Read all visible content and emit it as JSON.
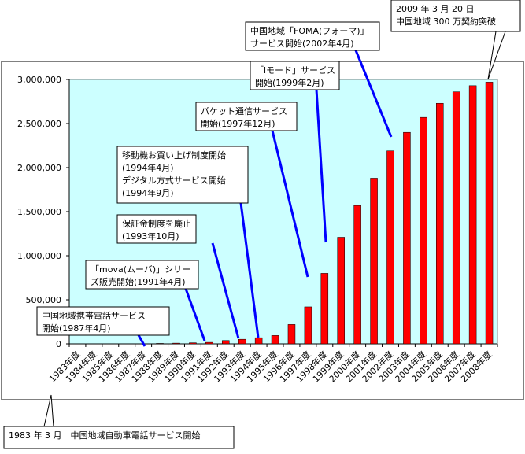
{
  "chart_data": {
    "type": "bar",
    "title": "",
    "xlabel": "",
    "ylabel": "",
    "ylim": [
      0,
      3000000
    ],
    "yticks": [
      0,
      500000,
      1000000,
      1500000,
      2000000,
      2500000,
      3000000
    ],
    "ytick_labels": [
      "0",
      "500,000",
      "1,000,000",
      "1,500,000",
      "2,000,000",
      "2,500,000",
      "3,000,000"
    ],
    "grid": false,
    "legend": "none",
    "plot_background": "#ccffff",
    "bar_color": "#ff0000",
    "categories": [
      "1983年度",
      "1984年度",
      "1985年度",
      "1986年度",
      "1987年度",
      "1988年度",
      "1989年度",
      "1990年度",
      "1991年度",
      "1992年度",
      "1993年度",
      "1994年度",
      "1995年度",
      "1996年度",
      "1997年度",
      "1998年度",
      "1999年度",
      "2000年度",
      "2001年度",
      "2002年度",
      "2003年度",
      "2004年度",
      "2005年度",
      "2006年度",
      "2007年度",
      "2008年度"
    ],
    "values": [
      0,
      0,
      0,
      0,
      2000,
      5000,
      8000,
      12000,
      17000,
      38000,
      52000,
      70000,
      95000,
      220000,
      420000,
      800000,
      1210000,
      1570000,
      1880000,
      2190000,
      2400000,
      2570000,
      2730000,
      2860000,
      2930000,
      2970000
    ],
    "annotations": [
      {
        "id": "a1983",
        "lines": [
          "1983 年 3 月　中国地域自動車電話サービス開始"
        ],
        "target_index": 0
      },
      {
        "id": "a1987",
        "lines": [
          "中国地域携帯電話サービス",
          "開始(1987年4月)"
        ],
        "target_index": 4
      },
      {
        "id": "a1991",
        "lines": [
          "「mova(ムーバ)」シリー",
          "ズ販売開始(1991年4月)"
        ],
        "target_index": 8
      },
      {
        "id": "a1993",
        "lines": [
          "保証金制度を廃止",
          "(1993年10月)"
        ],
        "target_index": 10
      },
      {
        "id": "a1994",
        "lines": [
          "移動機お買い上げ制度開始",
          "(1994年4月)",
          "デジタル方式サービス開始",
          "(1994年9月)"
        ],
        "target_index": 11
      },
      {
        "id": "a1997",
        "lines": [
          "パケット通信サービス",
          "開始(1997年12月)"
        ],
        "target_index": 14
      },
      {
        "id": "a1999",
        "lines": [
          "「iモード」サービス",
          "開始(1999年2月)"
        ],
        "target_index": 15
      },
      {
        "id": "a2002",
        "lines": [
          "中国地域「FOMA(フォーマ)」",
          "サービス開始(2002年4月)"
        ],
        "target_index": 19
      },
      {
        "id": "a2009",
        "lines": [
          "2009 年 3 月 20 日",
          "中国地域 300 万契約突破"
        ],
        "target_index": 25
      }
    ]
  }
}
